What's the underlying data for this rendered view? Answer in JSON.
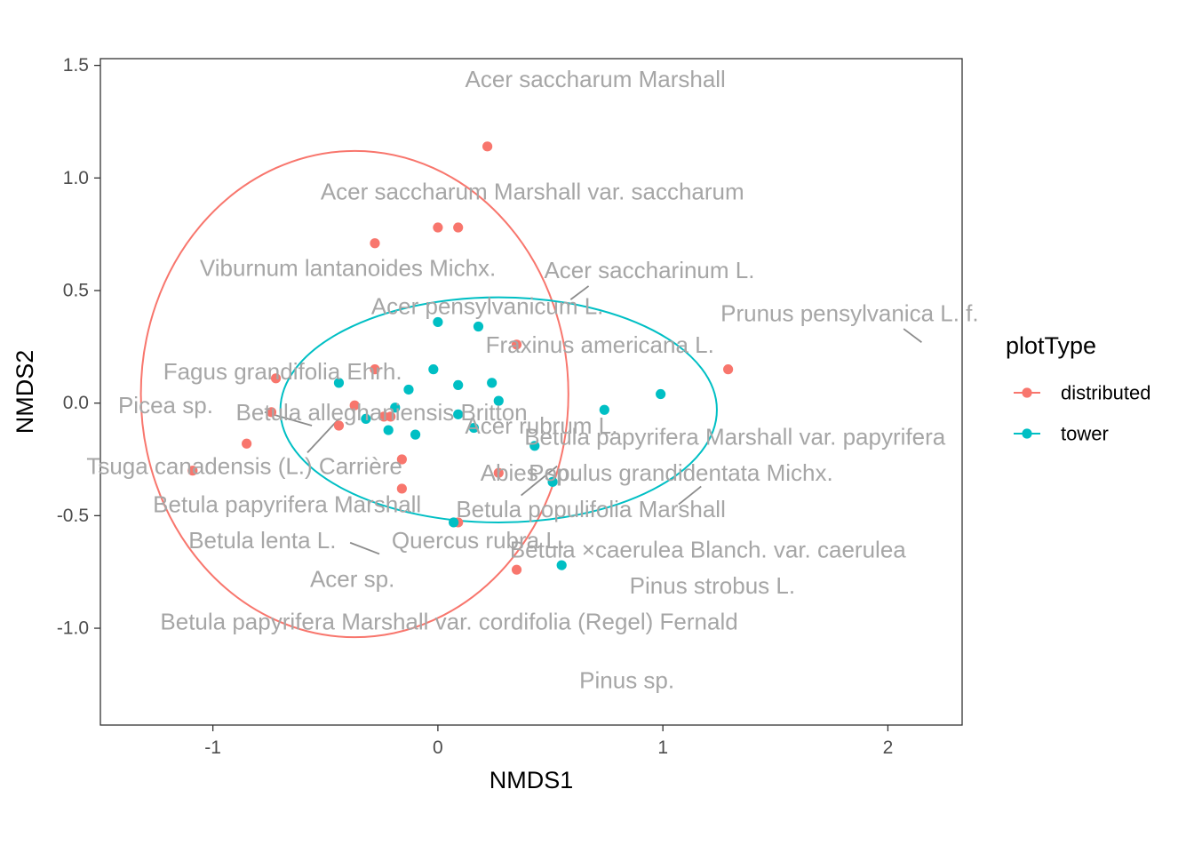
{
  "chart_data": {
    "type": "scatter",
    "xlabel": "NMDS1",
    "ylabel": "NMDS2",
    "xlim": [
      -1.5,
      2.33
    ],
    "ylim": [
      -1.43,
      1.53
    ],
    "x_ticks": [
      -1,
      0,
      1,
      2
    ],
    "y_ticks": [
      1.5,
      1.0,
      0.5,
      0.0,
      -0.5,
      -1.0
    ],
    "x_tick_labels": [
      "-1",
      "0",
      "1",
      "2"
    ],
    "y_tick_labels": [
      "1.5",
      "1.0",
      "0.5",
      "0.0",
      "-0.5",
      "-1.0"
    ],
    "grid": false,
    "legend": {
      "title": "plotType",
      "placement": "right",
      "entries": [
        {
          "name": "distributed",
          "color": "#F8766D"
        },
        {
          "name": "tower",
          "color": "#00BFC4"
        }
      ]
    },
    "series": [
      {
        "name": "distributed",
        "color": "#F8766D",
        "points": [
          [
            0.22,
            1.14
          ],
          [
            0.0,
            0.78
          ],
          [
            0.09,
            0.78
          ],
          [
            -0.28,
            0.71
          ],
          [
            0.35,
            0.26
          ],
          [
            -0.28,
            0.15
          ],
          [
            -0.72,
            0.11
          ],
          [
            -0.37,
            -0.01
          ],
          [
            -0.74,
            -0.04
          ],
          [
            -0.24,
            -0.06
          ],
          [
            -0.21,
            -0.06
          ],
          [
            -0.44,
            -0.1
          ],
          [
            -0.85,
            -0.18
          ],
          [
            -0.16,
            -0.25
          ],
          [
            -1.09,
            -0.3
          ],
          [
            0.27,
            -0.31
          ],
          [
            -0.16,
            -0.38
          ],
          [
            0.09,
            -0.53
          ],
          [
            0.35,
            -0.74
          ],
          [
            1.29,
            0.15
          ]
        ]
      },
      {
        "name": "tower",
        "color": "#00BFC4",
        "points": [
          [
            0.0,
            0.36
          ],
          [
            0.18,
            0.34
          ],
          [
            -0.02,
            0.15
          ],
          [
            -0.44,
            0.09
          ],
          [
            0.09,
            0.08
          ],
          [
            0.24,
            0.09
          ],
          [
            -0.13,
            0.06
          ],
          [
            0.27,
            0.01
          ],
          [
            -0.19,
            -0.02
          ],
          [
            0.09,
            -0.05
          ],
          [
            -0.32,
            -0.07
          ],
          [
            0.16,
            -0.11
          ],
          [
            -0.22,
            -0.12
          ],
          [
            -0.1,
            -0.14
          ],
          [
            0.43,
            -0.19
          ],
          [
            0.74,
            -0.03
          ],
          [
            0.99,
            0.04
          ],
          [
            0.51,
            -0.35
          ],
          [
            0.07,
            -0.53
          ],
          [
            0.55,
            -0.72
          ]
        ]
      }
    ],
    "ellipses": [
      {
        "name": "distributed",
        "color": "#F8766D",
        "center": [
          -0.37,
          0.04
        ],
        "rx": 0.95,
        "ry": 1.08
      },
      {
        "name": "tower",
        "color": "#00BFC4",
        "center": [
          0.27,
          -0.03
        ],
        "rx": 0.97,
        "ry": 0.5
      }
    ],
    "species_labels": [
      {
        "text": "Acer saccharum Marshall",
        "x": 0.7,
        "y": 1.44
      },
      {
        "text": "Acer saccharum Marshall var. saccharum",
        "x": 0.42,
        "y": 0.94
      },
      {
        "text": "Viburnum lantanoides Michx.",
        "x": -0.4,
        "y": 0.6
      },
      {
        "text": "Acer saccharinum L.",
        "x": 0.94,
        "y": 0.59
      },
      {
        "text": "Acer pensylvanicum L.",
        "x": 0.22,
        "y": 0.43
      },
      {
        "text": "Prunus pensylvanica L. f.",
        "x": 1.83,
        "y": 0.4
      },
      {
        "text": "Fraxinus americana L.",
        "x": 0.72,
        "y": 0.26
      },
      {
        "text": "Fagus grandifolia Ehrh.",
        "x": -0.69,
        "y": 0.14
      },
      {
        "text": "Picea sp.",
        "x": -1.21,
        "y": -0.01
      },
      {
        "text": "Betula alleghaniensis Britton",
        "x": -0.25,
        "y": -0.04
      },
      {
        "text": "Acer rubrum L.",
        "x": 0.46,
        "y": -0.1
      },
      {
        "text": "Betula papyrifera Marshall var. papyrifera",
        "x": 1.32,
        "y": -0.15
      },
      {
        "text": "Tsuga canadensis (L.) Carrière",
        "x": -0.86,
        "y": -0.28
      },
      {
        "text": "Abies sp.",
        "x": 0.4,
        "y": -0.31
      },
      {
        "text": "Populus grandidentata Michx.",
        "x": 1.08,
        "y": -0.31
      },
      {
        "text": "Betula papyrifera Marshall",
        "x": -0.67,
        "y": -0.45
      },
      {
        "text": "Betula populifolia Marshall",
        "x": 0.68,
        "y": -0.47
      },
      {
        "text": "Betula lenta L.",
        "x": -0.78,
        "y": -0.61
      },
      {
        "text": "Quercus rubra L.",
        "x": 0.18,
        "y": -0.61
      },
      {
        "text": "Betula ×caerulea Blanch. var. caerulea",
        "x": 1.2,
        "y": -0.65
      },
      {
        "text": "Acer sp.",
        "x": -0.38,
        "y": -0.78
      },
      {
        "text": "Pinus strobus L.",
        "x": 1.22,
        "y": -0.81
      },
      {
        "text": "Betula papyrifera Marshall var. cordifolia (Regel) Fernald",
        "x": 0.05,
        "y": -0.97
      },
      {
        "text": "Pinus sp.",
        "x": 0.84,
        "y": -1.23
      }
    ],
    "connector_lines": [
      {
        "from": [
          0.59,
          0.46
        ],
        "to": [
          0.67,
          0.52
        ]
      },
      {
        "from": [
          2.07,
          0.33
        ],
        "to": [
          2.15,
          0.27
        ]
      },
      {
        "from": [
          -0.77,
          -0.04
        ],
        "to": [
          -0.56,
          -0.1
        ]
      },
      {
        "from": [
          -0.58,
          -0.22
        ],
        "to": [
          -0.44,
          -0.07
        ]
      },
      {
        "from": [
          0.37,
          -0.41
        ],
        "to": [
          0.53,
          -0.28
        ]
      },
      {
        "from": [
          1.07,
          -0.45
        ],
        "to": [
          1.17,
          -0.37
        ]
      },
      {
        "from": [
          -0.39,
          -0.62
        ],
        "to": [
          -0.26,
          -0.67
        ]
      }
    ]
  }
}
